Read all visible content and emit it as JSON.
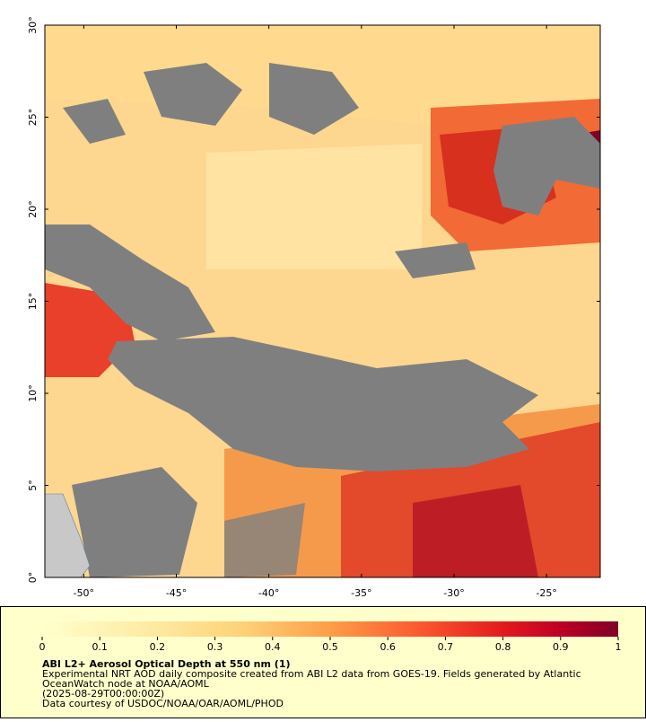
{
  "map": {
    "xlim": [
      -52.1,
      -22.1
    ],
    "ylim": [
      0,
      30
    ],
    "xticks": [
      {
        "value": -50,
        "label": "-50°"
      },
      {
        "value": -45,
        "label": "-45°"
      },
      {
        "value": -40,
        "label": "-40°"
      },
      {
        "value": -35,
        "label": "-35°"
      },
      {
        "value": -30,
        "label": "-30°"
      },
      {
        "value": -25,
        "label": "-25°"
      }
    ],
    "yticks": [
      {
        "value": 0,
        "label": "0°"
      },
      {
        "value": 5,
        "label": "5°"
      },
      {
        "value": 10,
        "label": "10°"
      },
      {
        "value": 15,
        "label": "15°"
      },
      {
        "value": 20,
        "label": "20°"
      },
      {
        "value": 25,
        "label": "25°"
      },
      {
        "value": 30,
        "label": "30°"
      }
    ]
  },
  "colorbar": {
    "lim": [
      0,
      1
    ],
    "ticks": [
      0,
      0.1,
      0.2,
      0.3,
      0.4,
      0.5,
      0.6,
      0.7,
      0.8,
      0.9,
      1
    ]
  },
  "caption": {
    "title": "ABI L2+ Aerosol Optical Depth at 550 nm (1)",
    "lines": [
      "Experimental NRT AOD daily composite created from ABI L2 data from GOES-19. Fields generated by Atlantic",
      "OceanWatch node at NOAA/AOML",
      "(2025-08-29T00:00:00Z)",
      "Data courtesy of USDOC/NOAA/OAR/AOML/PHOD"
    ]
  }
}
